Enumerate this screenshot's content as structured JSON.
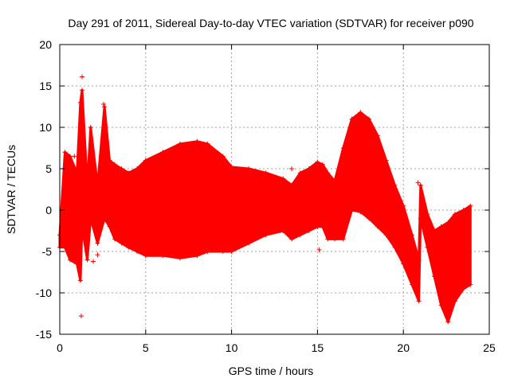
{
  "chart_data": {
    "type": "scatter",
    "title": "Day 291 of 2011, Sidereal Day-to-day VTEC variation (SDTVAR) for receiver p090",
    "xlabel": "GPS time / hours",
    "ylabel": "SDTVAR / TECUs",
    "xlim": [
      0,
      25
    ],
    "ylim": [
      -15,
      20
    ],
    "xticks": [
      0,
      5,
      10,
      15,
      20,
      25
    ],
    "yticks": [
      -15,
      -10,
      -5,
      0,
      5,
      10,
      15,
      20
    ],
    "xtick_labels": [
      "0",
      "5",
      "10",
      "15",
      "20",
      "25"
    ],
    "ytick_labels": [
      "-15",
      "-10",
      "-5",
      "0",
      "5",
      "10",
      "15",
      "20"
    ],
    "grid": true,
    "marker": "+",
    "series": [
      {
        "name": "SDTVAR",
        "color": "#ff0000",
        "envelope": {
          "x": [
            0.0,
            0.3,
            0.6,
            1.0,
            1.2,
            1.3,
            1.6,
            1.8,
            2.2,
            2.6,
            2.9,
            3.2,
            3.6,
            4.0,
            4.5,
            5.0,
            6.0,
            7.0,
            8.0,
            8.6,
            9.5,
            10.0,
            11.0,
            12.0,
            13.0,
            13.5,
            14.0,
            14.5,
            15.0,
            15.3,
            15.6,
            16.0,
            16.5,
            17.0,
            17.5,
            18.0,
            18.5,
            19.0,
            19.5,
            20.0,
            20.5,
            20.9,
            21.0,
            21.4,
            21.8,
            22.2,
            22.6,
            23.0,
            23.5,
            23.9
          ],
          "upper": [
            -3.0,
            7.0,
            6.5,
            4.5,
            13.0,
            14.5,
            3.0,
            10.0,
            3.0,
            12.5,
            6.0,
            5.5,
            5.0,
            4.5,
            5.0,
            6.0,
            7.0,
            8.0,
            8.3,
            8.0,
            6.5,
            5.2,
            5.0,
            4.5,
            3.8,
            3.0,
            4.5,
            5.0,
            5.8,
            5.5,
            4.5,
            3.5,
            7.5,
            11.0,
            11.8,
            11.0,
            9.0,
            6.0,
            3.0,
            0.5,
            -3.0,
            -6.0,
            3.0,
            -0.5,
            -2.5,
            -2.0,
            -1.5,
            -0.5,
            0.0,
            0.5
          ],
          "lower": [
            -4.5,
            -4.5,
            -6.0,
            -6.5,
            -8.5,
            -2.0,
            -6.0,
            -1.0,
            -4.0,
            -1.0,
            -2.0,
            -3.5,
            -4.0,
            -4.5,
            -5.0,
            -5.5,
            -5.5,
            -5.8,
            -5.5,
            -5.0,
            -5.0,
            -5.0,
            -4.0,
            -3.0,
            -2.5,
            -3.5,
            -3.0,
            -2.5,
            -2.0,
            -2.0,
            -3.5,
            -3.5,
            -3.5,
            0.0,
            -0.2,
            -1.0,
            -2.0,
            -3.0,
            -4.5,
            -6.5,
            -9.0,
            -11.0,
            -1.0,
            -4.5,
            -8.0,
            -11.5,
            -13.5,
            -11.0,
            -9.5,
            -9.0
          ]
        },
        "outliers": [
          {
            "x": 1.25,
            "y": -12.8
          },
          {
            "x": 1.3,
            "y": 16.1
          },
          {
            "x": 2.55,
            "y": 12.8
          },
          {
            "x": 2.2,
            "y": -5.4
          },
          {
            "x": 1.95,
            "y": -6.2
          },
          {
            "x": 0.85,
            "y": 6.5
          },
          {
            "x": 13.5,
            "y": 5.0
          },
          {
            "x": 15.1,
            "y": -4.8
          },
          {
            "x": 20.85,
            "y": 3.3
          }
        ]
      }
    ]
  }
}
